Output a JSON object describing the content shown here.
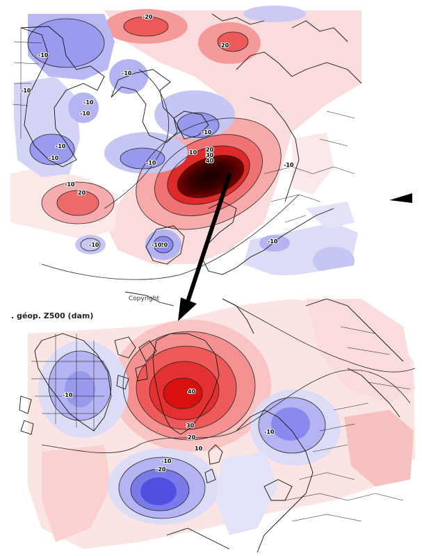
{
  "map": {
    "caption": ". géop. Z500 (dam)",
    "copyright": "Copyright",
    "colors": {
      "positive_light": "#f9d4d4",
      "positive_mid": "#f08a8a",
      "positive_strong": "#e02020",
      "positive_extreme": "#3a0000",
      "negative_light": "#dcdcf7",
      "negative_mid": "#9a9aee",
      "negative_strong": "#5a5ae6",
      "coastline": "#111111",
      "arrow": "#000000"
    },
    "top_panel": {
      "labels": [
        "-20",
        "20",
        "-10",
        "-10",
        "-10",
        "-10",
        "-10",
        "-10",
        "-10",
        "-10",
        "-10",
        "20",
        "10",
        "20",
        "30",
        "40",
        "-10",
        "-10",
        "20",
        "-10",
        "-10",
        "-10"
      ]
    },
    "bottom_panel": {
      "labels": [
        "-10",
        "40",
        "30",
        "20",
        "10",
        "-10",
        "-10",
        "-20"
      ]
    },
    "arrow": {
      "icon": "arrow-down-icon"
    }
  }
}
